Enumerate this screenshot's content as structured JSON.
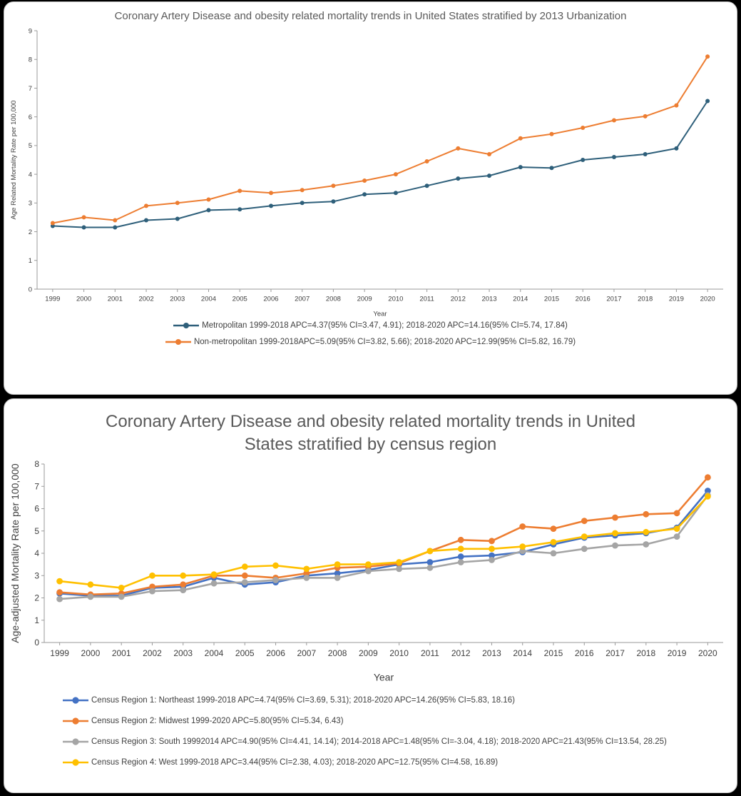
{
  "chart_data": [
    {
      "type": "line",
      "title": "Coronary Artery Disease and obesity related mortality trends in United States stratified by 2013 Urbanization",
      "xlabel": "Year",
      "ylabel": "Age Related Mortality Rate per 100,000",
      "ylim": [
        0,
        9
      ],
      "yticks": [
        0,
        1,
        2,
        3,
        4,
        5,
        6,
        7,
        8,
        9
      ],
      "x": [
        "1999",
        "2000",
        "2001",
        "2002",
        "2003",
        "2004",
        "2005",
        "2006",
        "2007",
        "2008",
        "2009",
        "2010",
        "2011",
        "2012",
        "2013",
        "2014",
        "2015",
        "2016",
        "2017",
        "2018",
        "2019",
        "2020"
      ],
      "legend_position": "bottom-center",
      "grid": false,
      "series": [
        {
          "name": "Metropolitan 1999-2018 APC=4.37(95% CI=3.47, 4.91); 2018-2020 APC=14.16(95% CI=5.74, 17.84)",
          "color": "#2E5F7A",
          "values": [
            2.2,
            2.15,
            2.15,
            2.4,
            2.45,
            2.75,
            2.78,
            2.9,
            3.0,
            3.05,
            3.3,
            3.35,
            3.6,
            3.85,
            3.95,
            4.25,
            4.22,
            4.5,
            4.6,
            4.7,
            4.9,
            6.55
          ]
        },
        {
          "name": "Non-metropolitan 1999-2018APC=5.09(95% CI=3.82, 5.66); 2018-2020 APC=12.99(95% CI=5.82, 16.79)",
          "color": "#ED7D31",
          "values": [
            2.3,
            2.5,
            2.4,
            2.9,
            3.0,
            3.12,
            3.42,
            3.35,
            3.45,
            3.6,
            3.78,
            4.0,
            4.45,
            4.9,
            4.7,
            5.25,
            5.4,
            5.62,
            5.88,
            6.02,
            6.4,
            8.1
          ]
        }
      ]
    },
    {
      "type": "line",
      "title": "Coronary Artery Disease and obesity related mortality trends in United States stratified by census region",
      "xlabel": "Year",
      "ylabel": "Age-adjusted Mortality Rate per 100,000",
      "ylim": [
        0,
        8
      ],
      "yticks": [
        0,
        1,
        2,
        3,
        4,
        5,
        6,
        7,
        8
      ],
      "x": [
        "1999",
        "2000",
        "2001",
        "2002",
        "2003",
        "2004",
        "2005",
        "2006",
        "2007",
        "2008",
        "2009",
        "2010",
        "2011",
        "2012",
        "2013",
        "2014",
        "2015",
        "2016",
        "2017",
        "2018",
        "2019",
        "2020"
      ],
      "legend_position": "bottom-left",
      "grid": false,
      "series": [
        {
          "name": "Census Region 1: Northeast 1999-2018 APC=4.74(95% CI=3.69, 5.31); 2018-2020 APC=14.26(95% CI=5.83, 18.16)",
          "color": "#4472C4",
          "values": [
            2.2,
            2.1,
            2.1,
            2.45,
            2.5,
            2.9,
            2.6,
            2.7,
            3.0,
            3.1,
            3.25,
            3.5,
            3.6,
            3.85,
            3.9,
            4.05,
            4.4,
            4.7,
            4.8,
            4.9,
            5.15,
            6.8
          ]
        },
        {
          "name": "Census Region 2: Midwest 1999-2020 APC=5.80(95% CI=5.34, 6.43)",
          "color": "#ED7D31",
          "values": [
            2.25,
            2.15,
            2.2,
            2.5,
            2.6,
            3.0,
            3.0,
            2.9,
            3.1,
            3.35,
            3.4,
            3.55,
            4.1,
            4.6,
            4.55,
            5.2,
            5.1,
            5.45,
            5.6,
            5.75,
            5.8,
            7.4
          ]
        },
        {
          "name": "Census Region 3: South 19992014 APC=4.90(95% CI=4.41, 14.14); 2014-2018 APC=1.48(95% CI=-3.04, 4.18); 2018-2020 APC=21.43(95% CI=13.54, 28.25)",
          "color": "#A5A5A5",
          "values": [
            1.95,
            2.05,
            2.05,
            2.3,
            2.35,
            2.65,
            2.7,
            2.8,
            2.9,
            2.9,
            3.2,
            3.3,
            3.35,
            3.6,
            3.7,
            4.1,
            4.0,
            4.2,
            4.35,
            4.4,
            4.75,
            6.6
          ]
        },
        {
          "name": "Census Region 4: West 1999-2018 APC=3.44(95% CI=2.38, 4.03); 2018-2020 APC=12.75(95% CI=4.58, 16.89)",
          "color": "#FFC000",
          "values": [
            2.75,
            2.6,
            2.45,
            3.0,
            3.0,
            3.05,
            3.4,
            3.45,
            3.3,
            3.5,
            3.5,
            3.6,
            4.1,
            4.2,
            4.2,
            4.3,
            4.5,
            4.75,
            4.9,
            4.95,
            5.1,
            6.55
          ]
        }
      ]
    }
  ]
}
